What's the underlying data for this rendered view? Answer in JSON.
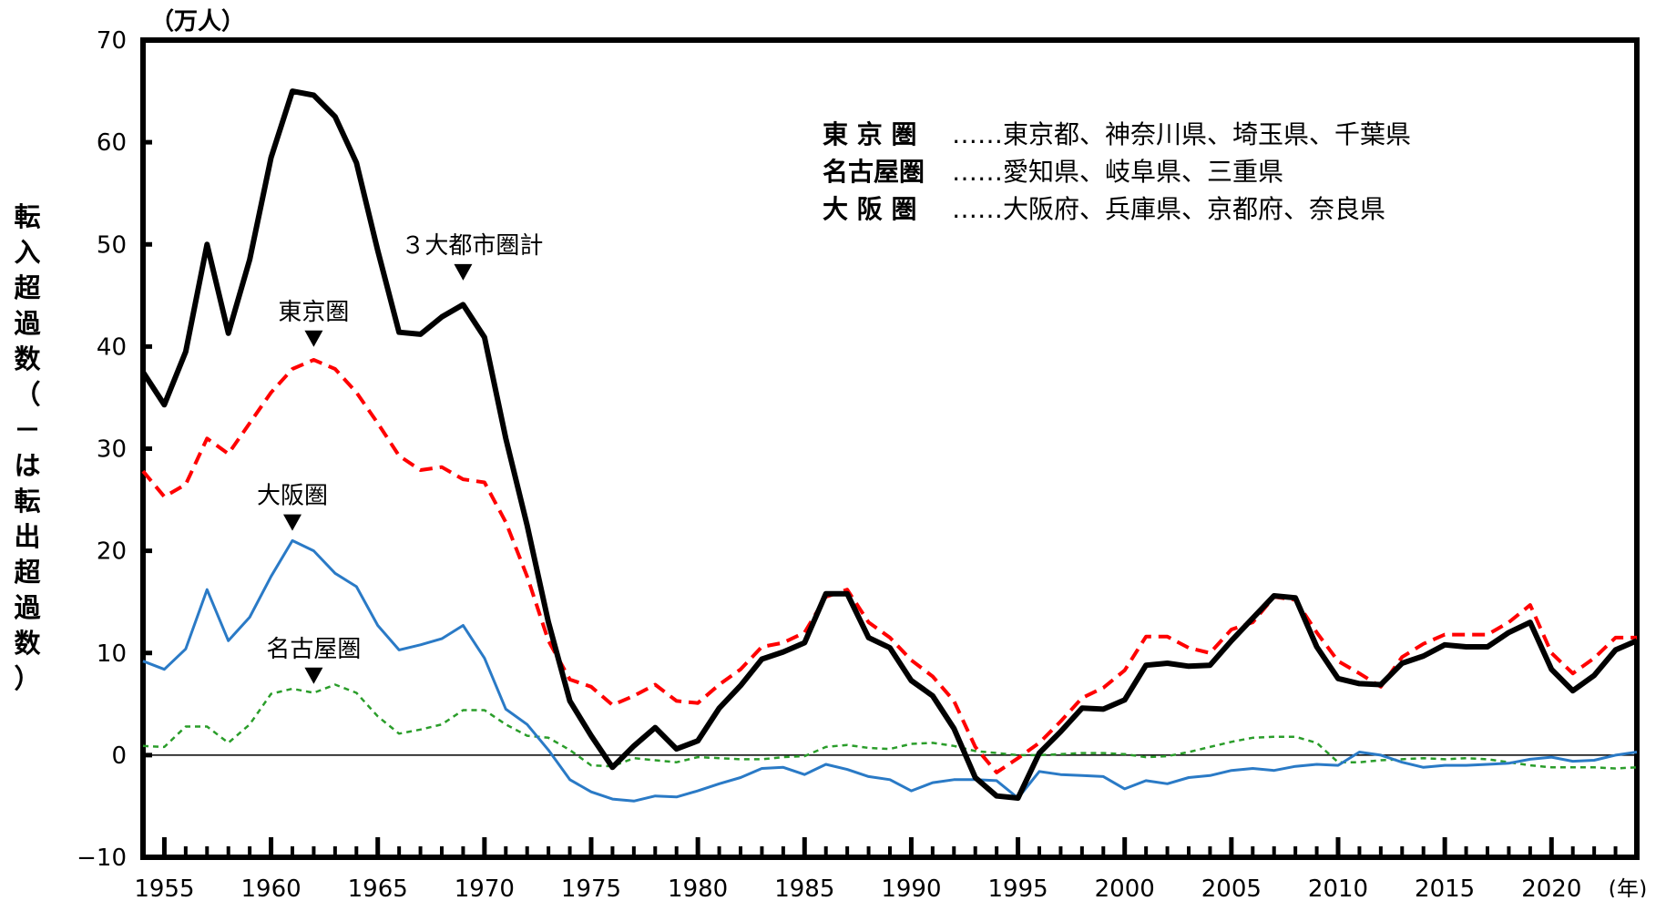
{
  "chart_data": {
    "type": "line",
    "y_unit": "（万人）",
    "ylabel_lines": [
      "転",
      "入",
      "超",
      "過",
      "数",
      "（",
      "－",
      "は",
      "転",
      "出",
      "超",
      "過",
      "数",
      "）"
    ],
    "x_unit": "(年)",
    "xlim": [
      1954,
      2024
    ],
    "ylim": [
      -10,
      70
    ],
    "yticks": [
      -10,
      0,
      10,
      20,
      30,
      40,
      50,
      60,
      70
    ],
    "xtick_labels": [
      1955,
      1960,
      1965,
      1970,
      1975,
      1980,
      1985,
      1990,
      1995,
      2000,
      2005,
      2010,
      2015,
      2020
    ],
    "legend_note": [
      {
        "name": "東 京 圏",
        "members": "……東京都、神奈川県、埼玉県、千葉県"
      },
      {
        "name": "名古屋圏",
        "members": "……愛知県、岐阜県、三重県"
      },
      {
        "name": "大 阪 圏",
        "members": "……大阪府、兵庫県、京都府、奈良県"
      }
    ],
    "annotations": [
      {
        "text": "３大都市圏計",
        "x": 1969,
        "y": 47
      },
      {
        "text": "東京圏",
        "x": 1962,
        "y": 40.5
      },
      {
        "text": "大阪圏",
        "x": 1961,
        "y": 22.5
      },
      {
        "text": "名古屋圏",
        "x": 1962,
        "y": 7.5
      }
    ],
    "x": [
      1954,
      1955,
      1956,
      1957,
      1958,
      1959,
      1960,
      1961,
      1962,
      1963,
      1964,
      1965,
      1966,
      1967,
      1968,
      1969,
      1970,
      1971,
      1972,
      1973,
      1974,
      1975,
      1976,
      1977,
      1978,
      1979,
      1980,
      1981,
      1982,
      1983,
      1984,
      1985,
      1986,
      1987,
      1988,
      1989,
      1990,
      1991,
      1992,
      1993,
      1994,
      1995,
      1996,
      1997,
      1998,
      1999,
      2000,
      2001,
      2002,
      2003,
      2004,
      2005,
      2006,
      2007,
      2008,
      2009,
      2010,
      2011,
      2012,
      2013,
      2014,
      2015,
      2016,
      2017,
      2018,
      2019,
      2020,
      2021,
      2022,
      2023,
      2024
    ],
    "series": [
      {
        "key": "total",
        "color": "#000000",
        "dash": "",
        "width": 6,
        "values": [
          37.5,
          34.3,
          39.5,
          50.0,
          41.3,
          48.5,
          58.5,
          65.0,
          64.6,
          62.5,
          58.0,
          49.4,
          41.4,
          41.2,
          42.9,
          44.1,
          40.9,
          31.0,
          22.5,
          13.0,
          5.3,
          1.9,
          -1.2,
          0.9,
          2.7,
          0.6,
          1.4,
          4.6,
          6.8,
          9.4,
          10.1,
          11.0,
          15.8,
          15.8,
          11.5,
          10.5,
          7.3,
          5.8,
          2.6,
          -2.2,
          -4.0,
          -4.2,
          0.2,
          2.3,
          4.6,
          4.5,
          5.4,
          8.8,
          9.0,
          8.7,
          8.8,
          11.2,
          13.4,
          15.6,
          15.4,
          10.6,
          7.5,
          7.0,
          6.9,
          9.0,
          9.7,
          10.8,
          10.6,
          10.6,
          12.0,
          13.0,
          8.4,
          6.3,
          7.8,
          10.3,
          11.2
        ]
      },
      {
        "key": "tokyo",
        "color": "#ff0000",
        "dash": "14,8",
        "width": 4,
        "values": [
          27.8,
          25.3,
          26.5,
          31.0,
          29.5,
          32.5,
          35.5,
          37.8,
          38.7,
          37.8,
          35.5,
          32.5,
          29.3,
          27.9,
          28.2,
          27.0,
          26.7,
          22.8,
          17.5,
          11.2,
          7.4,
          6.7,
          4.9,
          5.8,
          6.9,
          5.3,
          5.1,
          6.9,
          8.4,
          10.6,
          11.0,
          12.0,
          15.5,
          16.2,
          13.0,
          11.5,
          9.3,
          7.7,
          5.3,
          0.8,
          -1.7,
          -0.3,
          1.2,
          3.3,
          5.6,
          6.6,
          8.3,
          11.6,
          11.6,
          10.5,
          10.0,
          12.3,
          13.0,
          15.5,
          15.2,
          12.0,
          9.2,
          8.0,
          6.7,
          9.6,
          10.9,
          11.8,
          11.8,
          11.8,
          13.0,
          14.7,
          10.0,
          8.0,
          9.5,
          11.5,
          11.5
        ]
      },
      {
        "key": "osaka",
        "color": "#2a7ac6",
        "dash": "",
        "width": 3,
        "values": [
          9.2,
          8.4,
          10.4,
          16.2,
          11.2,
          13.5,
          17.5,
          21.0,
          20.0,
          17.8,
          16.5,
          12.7,
          10.3,
          10.8,
          11.4,
          12.7,
          9.5,
          4.5,
          3.0,
          0.5,
          -2.4,
          -3.6,
          -4.3,
          -4.5,
          -4.0,
          -4.1,
          -3.5,
          -2.8,
          -2.2,
          -1.3,
          -1.2,
          -1.9,
          -0.9,
          -1.4,
          -2.1,
          -2.4,
          -3.5,
          -2.7,
          -2.4,
          -2.4,
          -2.5,
          -4.2,
          -1.6,
          -1.9,
          -2.0,
          -2.1,
          -3.3,
          -2.5,
          -2.8,
          -2.2,
          -2.0,
          -1.5,
          -1.3,
          -1.5,
          -1.1,
          -0.9,
          -1.0,
          0.3,
          0.0,
          -0.7,
          -1.2,
          -1.0,
          -1.0,
          -0.9,
          -0.8,
          -0.4,
          -0.2,
          -0.6,
          -0.5,
          0.0,
          0.3
        ]
      },
      {
        "key": "nagoya",
        "color": "#2a9d2a",
        "dash": "6,5",
        "width": 2.5,
        "values": [
          0.9,
          0.8,
          2.8,
          2.8,
          1.2,
          3.0,
          6.0,
          6.5,
          6.1,
          6.9,
          6.1,
          3.8,
          2.1,
          2.5,
          3.0,
          4.4,
          4.4,
          3.0,
          1.9,
          1.7,
          0.5,
          -1.0,
          -1.1,
          -0.3,
          -0.5,
          -0.7,
          -0.2,
          -0.3,
          -0.4,
          -0.4,
          -0.2,
          -0.1,
          0.8,
          1.0,
          0.7,
          0.6,
          1.1,
          1.2,
          0.9,
          0.4,
          0.2,
          0.0,
          0.0,
          0.1,
          0.2,
          0.2,
          0.1,
          -0.2,
          -0.1,
          0.3,
          0.8,
          1.3,
          1.7,
          1.8,
          1.8,
          1.2,
          -0.7,
          -0.7,
          -0.5,
          -0.4,
          -0.3,
          -0.4,
          -0.3,
          -0.4,
          -0.7,
          -1.0,
          -1.2,
          -1.2,
          -1.2,
          -1.3,
          -1.2
        ]
      }
    ]
  }
}
